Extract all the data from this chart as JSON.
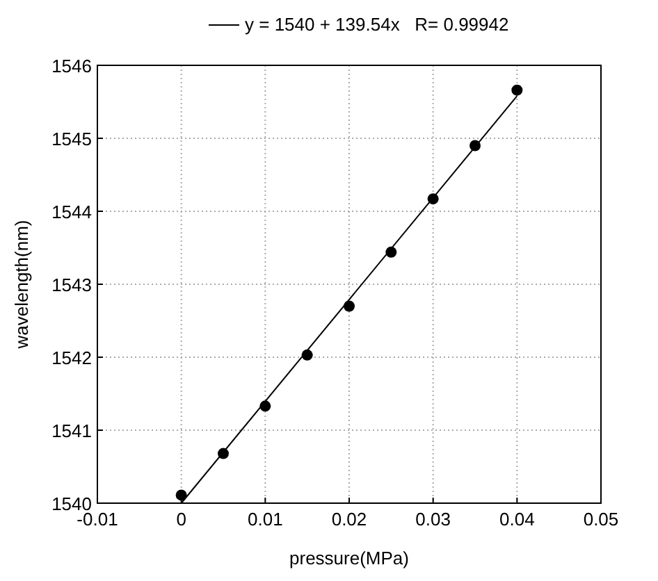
{
  "chart_data": {
    "type": "scatter",
    "xlabel": "pressure(MPa)",
    "ylabel": "wavelength(nm)",
    "x": [
      0,
      0.005,
      0.01,
      0.015,
      0.02,
      0.025,
      0.03,
      0.035,
      0.04
    ],
    "series": [
      {
        "color": "#000000",
        "marker": "circle",
        "values": [
          1540.11,
          1540.68,
          1541.33,
          1542.03,
          1542.7,
          1543.44,
          1544.17,
          1544.9,
          1545.66
        ]
      },
      {
        "type": "line",
        "name": "y = 1540 + 139.54x   R= 0.99942",
        "color": "#000000",
        "marker": "none",
        "x": [
          0,
          0.04
        ],
        "values": [
          1540,
          1545.58
        ]
      }
    ],
    "xlim": [
      -0.01,
      0.05
    ],
    "xticks": [
      -0.01,
      0,
      0.01,
      0.02,
      0.03,
      0.04,
      0.05
    ],
    "ylim": [
      1540,
      1546
    ],
    "yticks": [
      1540,
      1541,
      1542,
      1543,
      1544,
      1545,
      1546
    ],
    "grid": true,
    "legend": "top",
    "line_style": "solid"
  }
}
